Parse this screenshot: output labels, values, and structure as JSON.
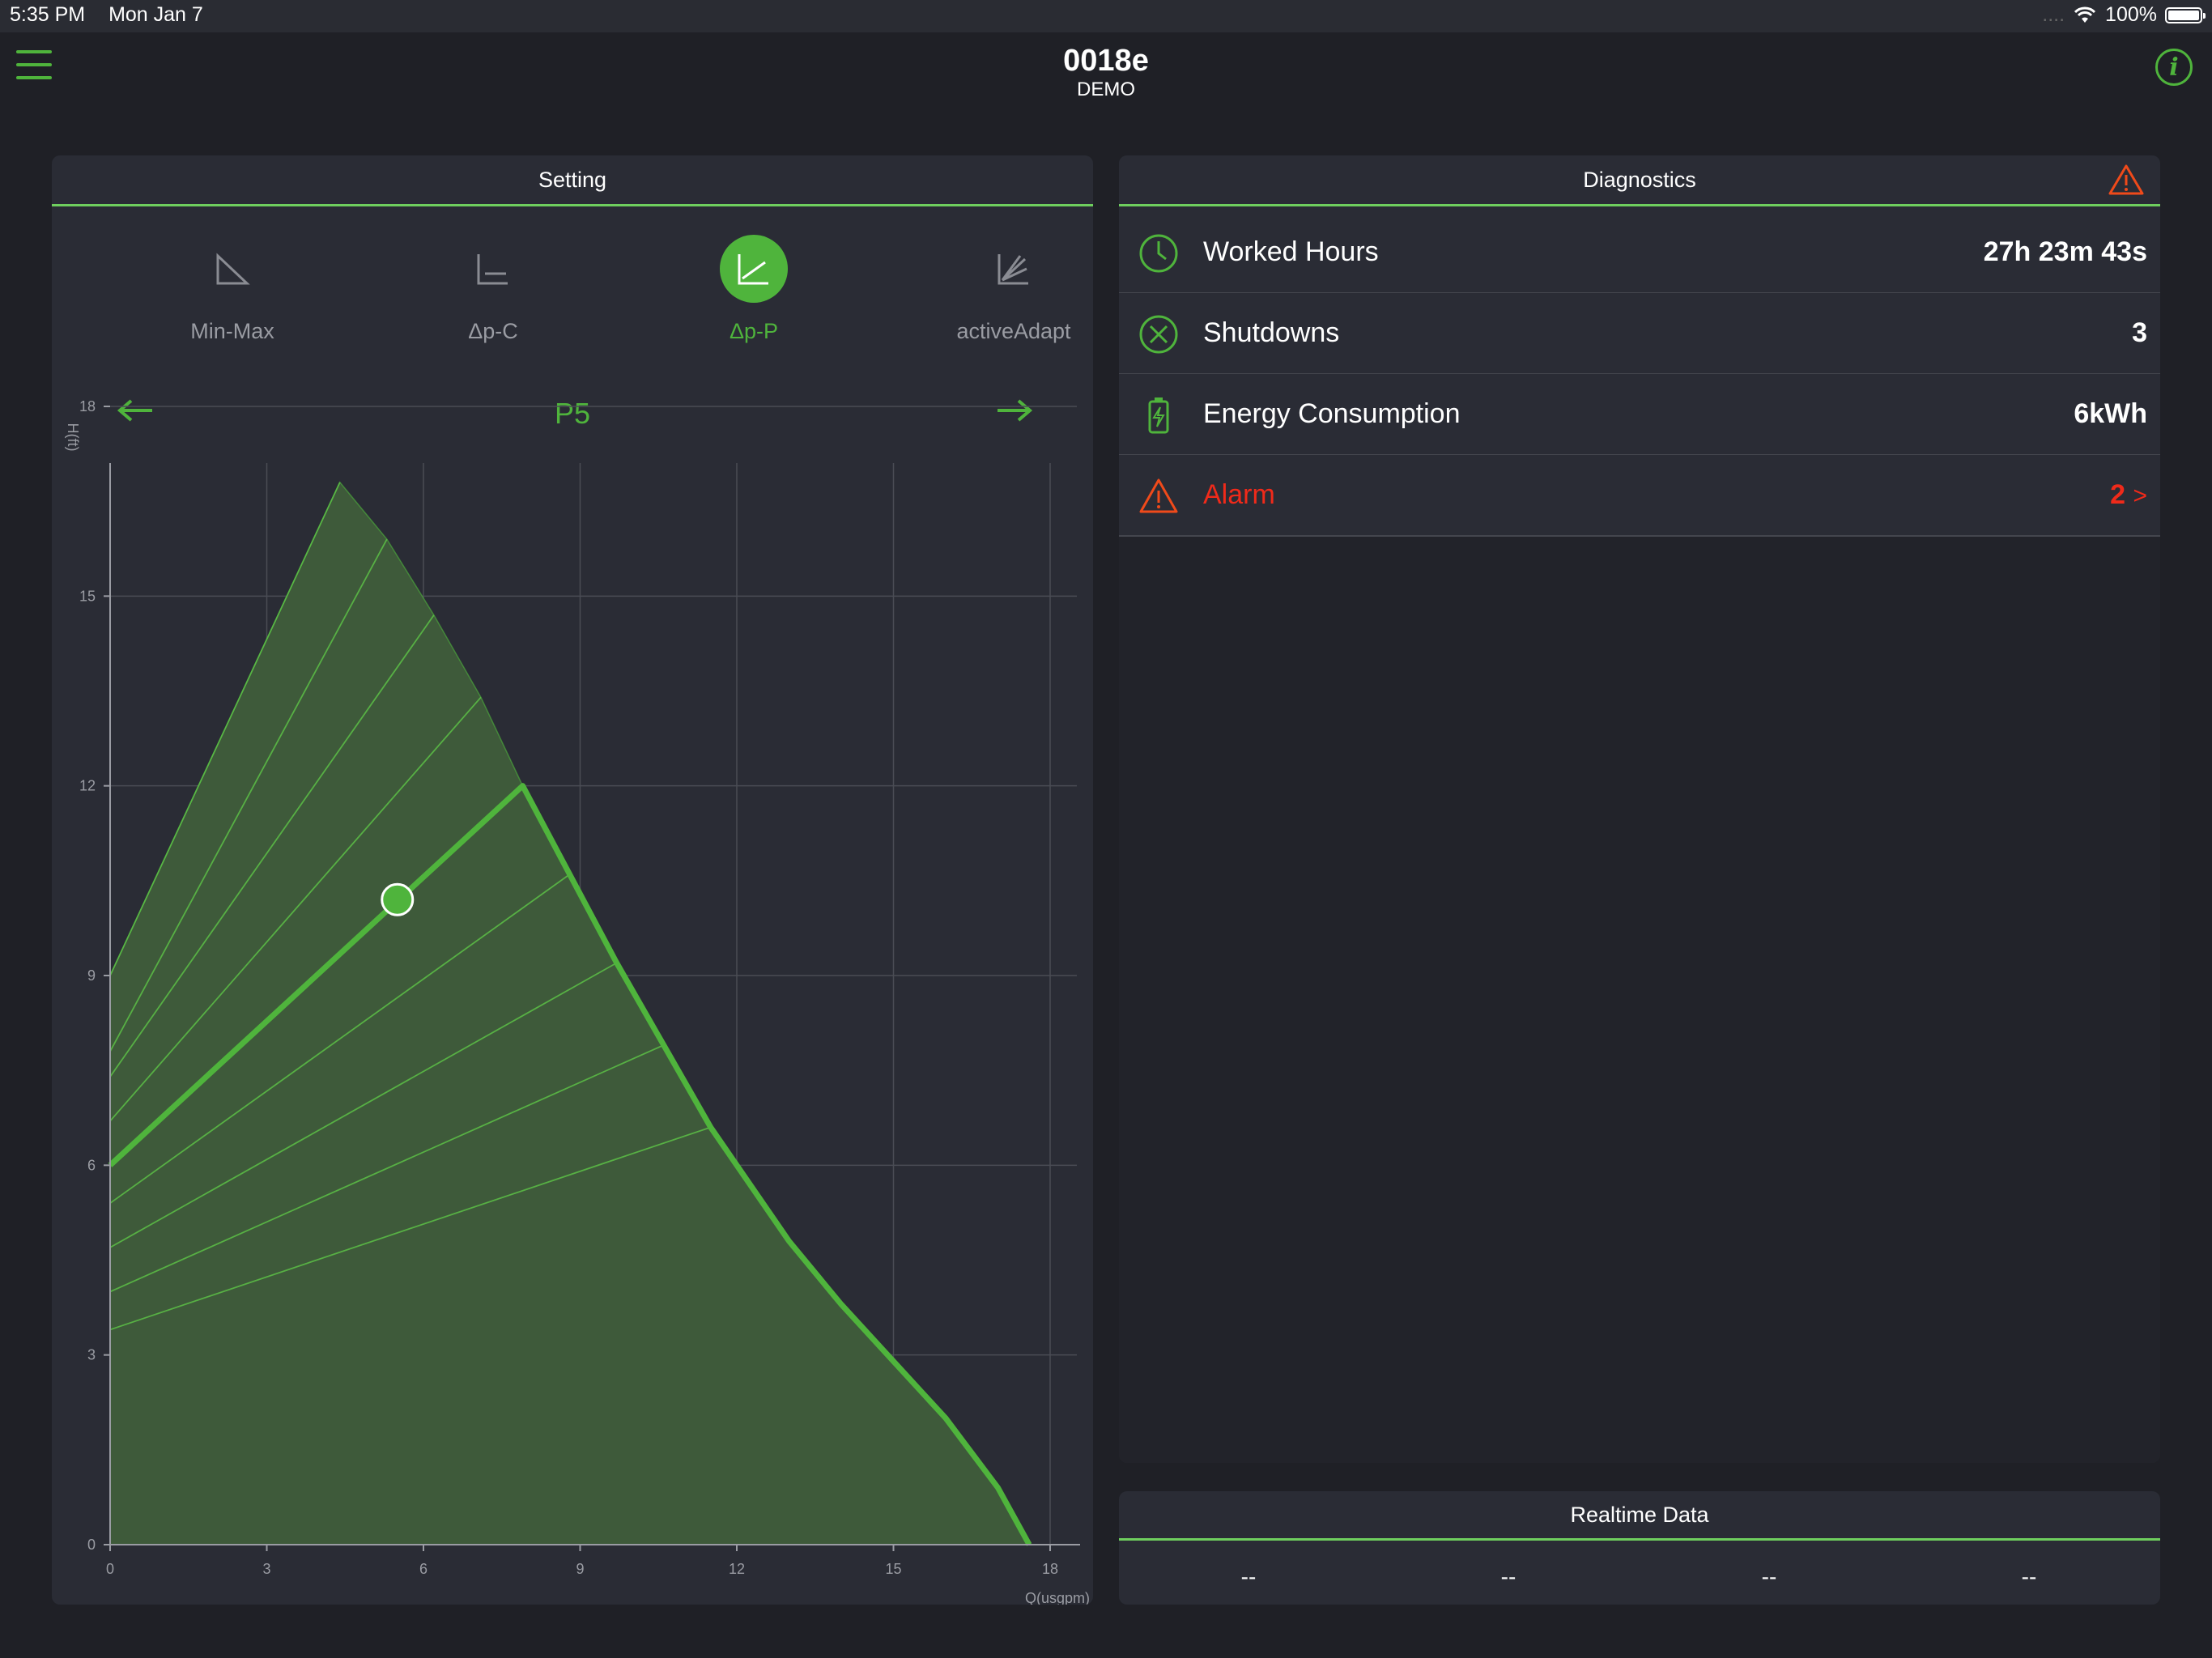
{
  "status_bar": {
    "time": "5:35 PM",
    "date": "Mon Jan 7",
    "signal": "....",
    "battery": "100%"
  },
  "header": {
    "title": "0018e",
    "subtitle": "DEMO"
  },
  "setting": {
    "title": "Setting",
    "modes": [
      {
        "label": "Min-Max",
        "icon": "min-max-icon",
        "active": false
      },
      {
        "label": "Δp-C",
        "icon": "dp-c-icon",
        "active": false
      },
      {
        "label": "Δp-P",
        "icon": "dp-p-icon",
        "active": true
      },
      {
        "label": "activeAdapt",
        "icon": "active-adapt-icon",
        "active": false
      }
    ],
    "curve_name": "P5"
  },
  "chart_data": {
    "type": "area",
    "xlabel": "Q(usgpm)",
    "ylabel": "H(ft)",
    "xlim": [
      0,
      18
    ],
    "ylim": [
      0,
      18
    ],
    "x_ticks": [
      "0",
      "3",
      "6",
      "9",
      "12",
      "15",
      "18"
    ],
    "y_ticks": [
      "0",
      "3",
      "6",
      "9",
      "12",
      "15",
      "18"
    ],
    "grid": true,
    "envelope": [
      [
        0,
        9
      ],
      [
        4.4,
        16.8
      ],
      [
        5.3,
        15.9
      ],
      [
        6.2,
        14.7
      ],
      [
        7.1,
        13.4
      ],
      [
        7.9,
        12.0
      ],
      [
        8.8,
        10.6
      ],
      [
        9.7,
        9.2
      ],
      [
        10.6,
        7.9
      ],
      [
        11.5,
        6.6
      ],
      [
        12.0,
        6.0
      ],
      [
        13.0,
        4.8
      ],
      [
        14.0,
        3.8
      ],
      [
        15.0,
        2.9
      ],
      [
        16.0,
        2.0
      ],
      [
        17.0,
        0.9
      ],
      [
        17.6,
        0
      ]
    ],
    "curves": [
      {
        "points": [
          [
            0,
            9.0
          ],
          [
            4.4,
            16.8
          ]
        ]
      },
      {
        "points": [
          [
            0,
            7.8
          ],
          [
            5.3,
            15.9
          ]
        ]
      },
      {
        "points": [
          [
            0,
            7.4
          ],
          [
            6.2,
            14.7
          ]
        ]
      },
      {
        "points": [
          [
            0,
            6.7
          ],
          [
            7.1,
            13.4
          ]
        ]
      },
      {
        "points": [
          [
            0,
            6.0
          ],
          [
            7.9,
            12.0
          ]
        ],
        "selected": true
      },
      {
        "points": [
          [
            0,
            5.4
          ],
          [
            8.8,
            10.6
          ]
        ]
      },
      {
        "points": [
          [
            0,
            4.7
          ],
          [
            9.7,
            9.2
          ]
        ]
      },
      {
        "points": [
          [
            0,
            4.0
          ],
          [
            10.6,
            7.9
          ]
        ]
      },
      {
        "points": [
          [
            0,
            3.4
          ],
          [
            11.5,
            6.6
          ]
        ]
      }
    ],
    "selected_outline": [
      [
        0,
        6.0
      ],
      [
        7.9,
        12.0
      ],
      [
        8.8,
        10.6
      ],
      [
        9.7,
        9.2
      ],
      [
        10.6,
        7.9
      ],
      [
        11.5,
        6.6
      ],
      [
        12.0,
        6.0
      ],
      [
        13.0,
        4.8
      ],
      [
        14.0,
        3.8
      ],
      [
        15.0,
        2.9
      ],
      [
        16.0,
        2.0
      ],
      [
        17.0,
        0.9
      ],
      [
        17.6,
        0
      ]
    ],
    "operating_point": {
      "x": 5.5,
      "y": 10.2
    }
  },
  "diagnostics": {
    "title": "Diagnostics",
    "rows": [
      {
        "label": "Worked Hours",
        "value": "27h 23m 43s",
        "icon": "clock-icon"
      },
      {
        "label": "Shutdowns",
        "value": "3",
        "icon": "shutdown-icon"
      },
      {
        "label": "Energy Consumption",
        "value": "6kWh",
        "icon": "battery-bolt-icon"
      },
      {
        "label": "Alarm",
        "value": "2",
        "chevron": ">",
        "icon": "warning-icon"
      }
    ]
  },
  "realtime": {
    "title": "Realtime Data",
    "values": [
      "--",
      "--",
      "--",
      "--"
    ]
  },
  "colors": {
    "accent": "#4fb43c",
    "alarm": "#f02a1a",
    "background": "#1f2026",
    "panel": "#2a2c35"
  }
}
